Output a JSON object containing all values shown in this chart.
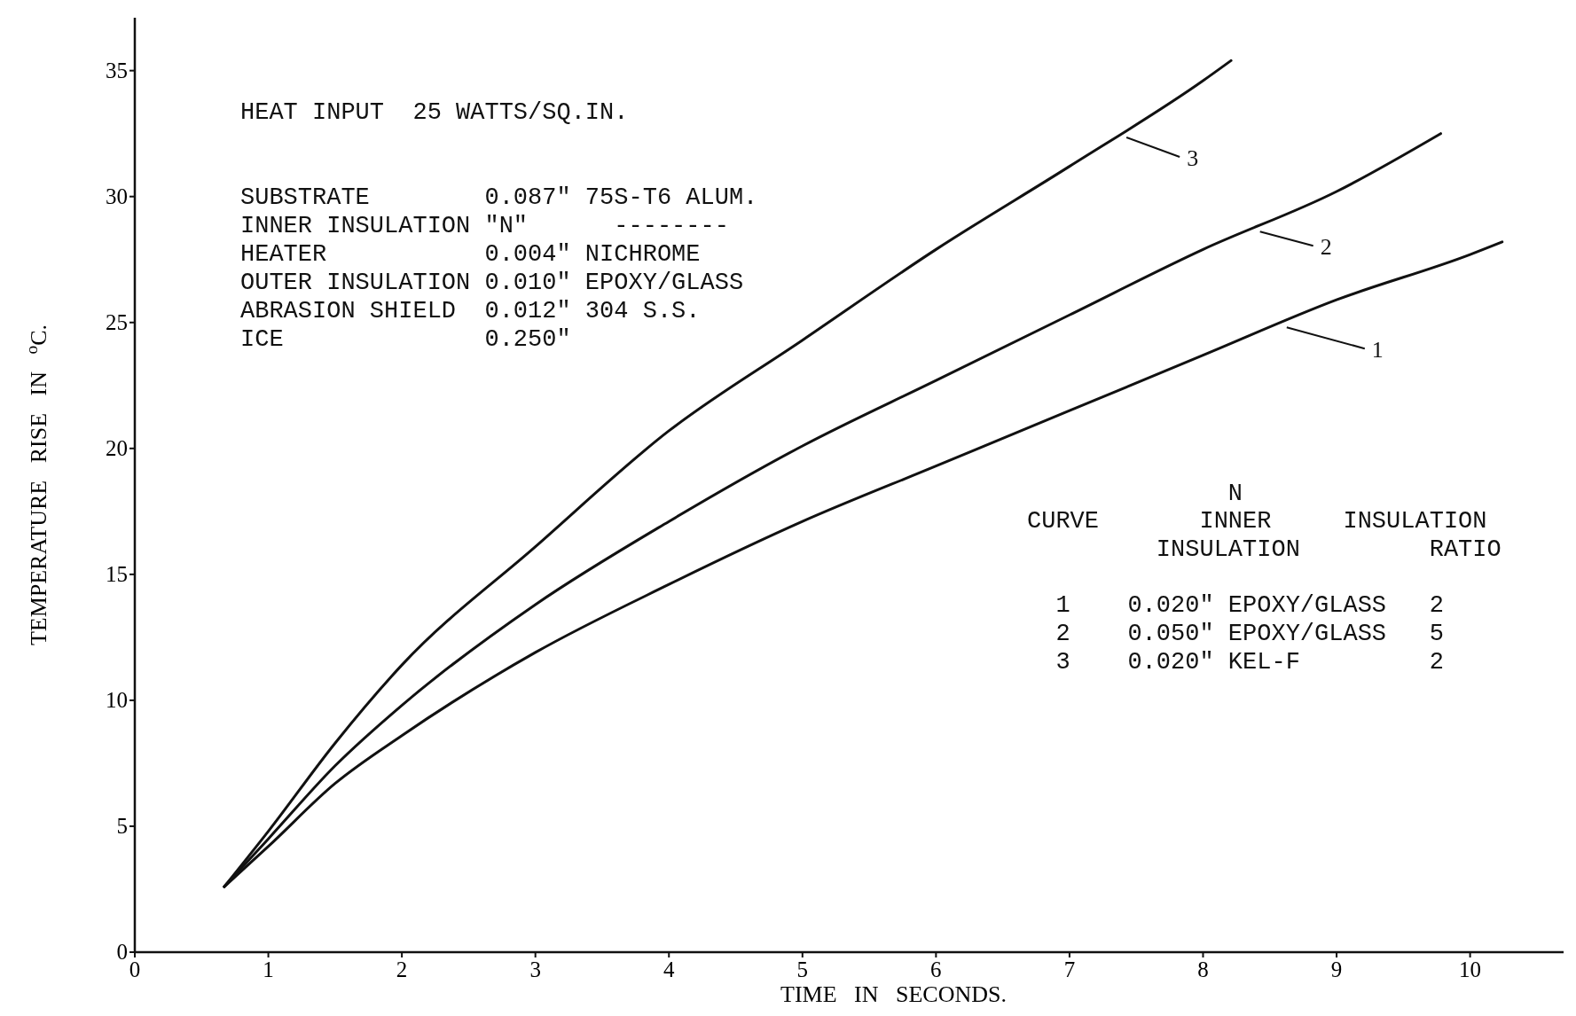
{
  "chart_data": {
    "type": "line",
    "xlabel": "TIME IN SECONDS.",
    "ylabel": "TEMPERATURE RISE IN $^{o}$C.",
    "xlim": [
      0,
      10.7
    ],
    "ylim": [
      0,
      37.1
    ],
    "xticks": [
      0,
      1,
      2,
      3,
      4,
      5,
      6,
      7,
      8,
      9,
      10
    ],
    "yticks": [
      0,
      5,
      10,
      15,
      20,
      25,
      30,
      35
    ],
    "grid": false,
    "legend": "right",
    "marker": "none",
    "line_style": "solid",
    "series": [
      {
        "name": "1",
        "color": "#111111",
        "x": [
          0.67,
          1,
          1.5,
          2,
          3,
          4,
          5,
          6,
          7,
          8,
          9,
          10,
          10.24
        ],
        "values": [
          2.6,
          4.2,
          6.7,
          8.6,
          11.9,
          14.6,
          17.1,
          19.3,
          21.5,
          23.7,
          25.9,
          27.7,
          28.2
        ]
      },
      {
        "name": "2",
        "color": "#111111",
        "x": [
          0.67,
          1,
          1.5,
          2,
          3,
          4,
          5,
          6,
          7,
          8,
          9,
          9.78
        ],
        "values": [
          2.6,
          4.5,
          7.4,
          9.8,
          13.8,
          17.1,
          20.1,
          22.7,
          25.3,
          27.9,
          30.2,
          32.5
        ]
      },
      {
        "name": "3",
        "color": "#111111",
        "x": [
          0.67,
          1,
          1.5,
          2,
          3,
          4,
          5,
          6,
          7,
          8,
          8.21
        ],
        "values": [
          2.6,
          4.8,
          8.3,
          11.4,
          16.1,
          20.7,
          24.3,
          27.9,
          31.2,
          34.6,
          35.4
        ]
      }
    ],
    "annotations": [
      "HEAT INPUT  25 WATTS/SQ.IN.",
      "SUBSTRATE        0.087\" 75S-T6 ALUM.",
      "INNER INSULATION \"N\"      --------",
      "HEATER           0.004\" NICHROME",
      "OUTER INSULATION 0.010\" EPOXY/GLASS",
      "ABRASION SHIELD  0.012\" 304 S.S.",
      "ICE              0.250\"",
      "              N",
      "CURVE       INNER     INSULATION",
      "         INSULATION         RATIO",
      "  1    0.020\" EPOXY/GLASS   2",
      "  2    0.050\" EPOXY/GLASS   5",
      "  3    0.020\" KEL-F         2"
    ]
  }
}
